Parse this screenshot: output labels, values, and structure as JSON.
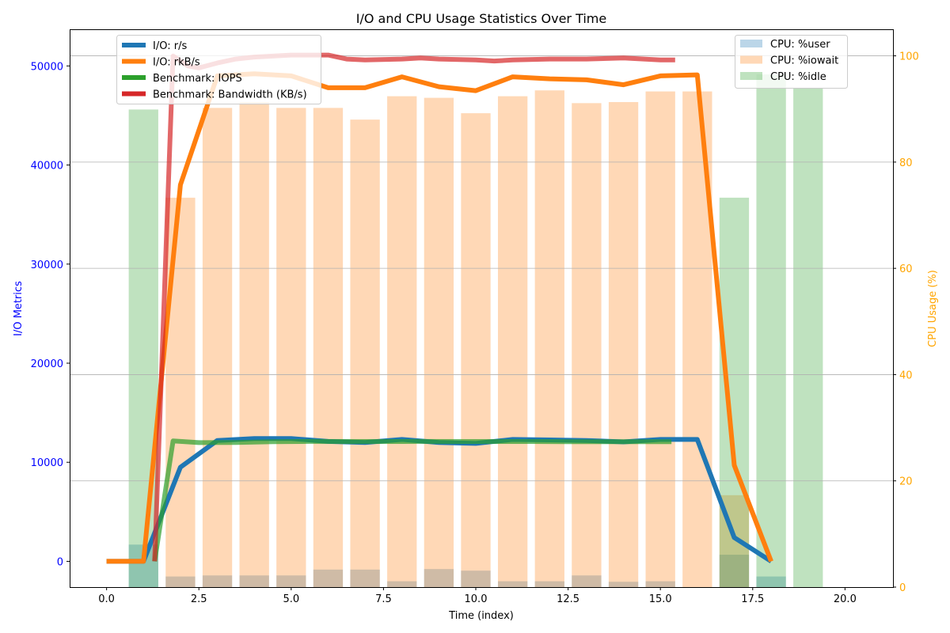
{
  "chart_data": {
    "type": "bar+line",
    "title": "I/O and CPU Usage Statistics Over Time",
    "xlabel": "Time (index)",
    "ylabel_left": "I/O Metrics",
    "ylabel_right": "CPU Usage (%)",
    "xlim": [
      -1.0,
      21.3
    ],
    "ylim_left": [
      -2600,
      53700
    ],
    "ylim_right": [
      0,
      105
    ],
    "x_ticks": [
      0.0,
      2.5,
      5.0,
      7.5,
      10.0,
      12.5,
      15.0,
      17.5,
      20.0
    ],
    "x_tick_labels": [
      "0.0",
      "2.5",
      "5.0",
      "7.5",
      "10.0",
      "12.5",
      "15.0",
      "17.5",
      "20.0"
    ],
    "y_left_ticks": [
      0,
      10000,
      20000,
      30000,
      40000,
      50000
    ],
    "y_left_tick_labels": [
      "0",
      "10000",
      "20000",
      "30000",
      "40000",
      "50000"
    ],
    "y_right_ticks": [
      0,
      20,
      40,
      60,
      80,
      100
    ],
    "y_right_tick_labels": [
      "0",
      "20",
      "40",
      "60",
      "80",
      "100"
    ],
    "grid": "horizontal lines on CPU axis",
    "left_legend_placement": "upper-left",
    "right_legend_placement": "upper-right",
    "colors": {
      "io_rs": "#1f77b4",
      "io_rkbs": "#ff7f0e",
      "bench_iops": "#2ca02c",
      "bench_bw": "#d62728",
      "cpu_user": "#1f77b4",
      "cpu_iowait": "#ff7f0e",
      "cpu_idle": "#2ca02c",
      "left_axis_text": "#0000ff",
      "right_axis_text": "#ffa500"
    },
    "line_series": [
      {
        "name": "I/O: r/s",
        "color": "#1f77b4",
        "x": [
          0,
          1,
          2,
          3,
          4,
          5,
          6,
          7,
          8,
          9,
          10,
          11,
          12,
          13,
          14,
          15,
          16,
          17,
          18
        ],
        "values": [
          0,
          0,
          9500,
          12200,
          12400,
          12400,
          12100,
          12000,
          12300,
          12000,
          11900,
          12300,
          12250,
          12200,
          12050,
          12300,
          12300,
          2400,
          0
        ]
      },
      {
        "name": "I/O: rkB/s",
        "color": "#ff7f0e",
        "x": [
          0,
          1,
          2,
          3,
          4,
          5,
          6,
          7,
          8,
          9,
          10,
          11,
          12,
          13,
          14,
          15,
          16,
          17,
          18
        ],
        "values": [
          0,
          0,
          38000,
          49000,
          49200,
          49000,
          47800,
          47800,
          48900,
          47900,
          47500,
          48900,
          48700,
          48600,
          48100,
          49000,
          49100,
          9700,
          0
        ]
      },
      {
        "name": "Benchmark: IOPS",
        "color": "#2ca02c",
        "x": [
          1.3,
          1.8,
          2.5,
          3.5,
          4.5,
          5.5,
          6.5,
          7.5,
          8.5,
          9.5,
          10.5,
          11.5,
          12.5,
          13.5,
          14.5,
          15.3
        ],
        "values": [
          0,
          12150,
          11980,
          12000,
          12070,
          12100,
          12090,
          12090,
          12100,
          12090,
          12090,
          12090,
          12080,
          12080,
          12080,
          12080
        ]
      },
      {
        "name": "Benchmark: Bandwidth (KB/s)",
        "color": "#d62728",
        "x": [
          1.3,
          1.8,
          2.2,
          2.5,
          3.0,
          3.5,
          4.0,
          5.0,
          6.0,
          6.5,
          7.0,
          8.0,
          8.5,
          9.0,
          10.0,
          10.5,
          11.0,
          12.0,
          13.0,
          14.0,
          15.0,
          15.4
        ],
        "values": [
          0,
          51000,
          50000,
          49800,
          50300,
          50700,
          50900,
          51100,
          51100,
          50700,
          50600,
          50700,
          50800,
          50700,
          50600,
          50500,
          50600,
          50700,
          50700,
          50800,
          50600,
          50600
        ]
      }
    ],
    "bar_series": [
      {
        "name": "CPU: %user",
        "color": "#1f77b4",
        "x": [
          1,
          2,
          3,
          4,
          5,
          6,
          7,
          8,
          9,
          10,
          11,
          12,
          13,
          14,
          15,
          16,
          17,
          18,
          19
        ],
        "values": [
          8,
          2,
          2.2,
          2.2,
          2.2,
          3.3,
          3.3,
          1.1,
          3.4,
          3.1,
          1.1,
          1.1,
          2.2,
          1,
          1.1,
          0,
          6.1,
          2,
          0
        ]
      },
      {
        "name": "CPU: %iowait",
        "color": "#ff7f0e",
        "x": [
          1,
          2,
          3,
          4,
          5,
          6,
          7,
          8,
          9,
          10,
          11,
          12,
          13,
          14,
          15,
          16,
          17,
          18,
          19
        ],
        "values": [
          0,
          73.3,
          90.2,
          91.3,
          90.2,
          90.2,
          88,
          92.4,
          92.1,
          89.2,
          92.4,
          93.5,
          91.1,
          91.3,
          93.3,
          93.3,
          17.3,
          0,
          0
        ]
      },
      {
        "name": "CPU: %idle",
        "color": "#2ca02c",
        "x": [
          1,
          2,
          3,
          4,
          5,
          6,
          7,
          8,
          9,
          10,
          11,
          12,
          13,
          14,
          15,
          16,
          17,
          18,
          19
        ],
        "values": [
          89.9,
          0,
          0,
          0,
          0,
          0,
          0,
          0,
          0,
          0,
          0,
          0,
          0,
          0,
          0,
          0,
          73.3,
          96.5,
          94
        ]
      }
    ]
  }
}
